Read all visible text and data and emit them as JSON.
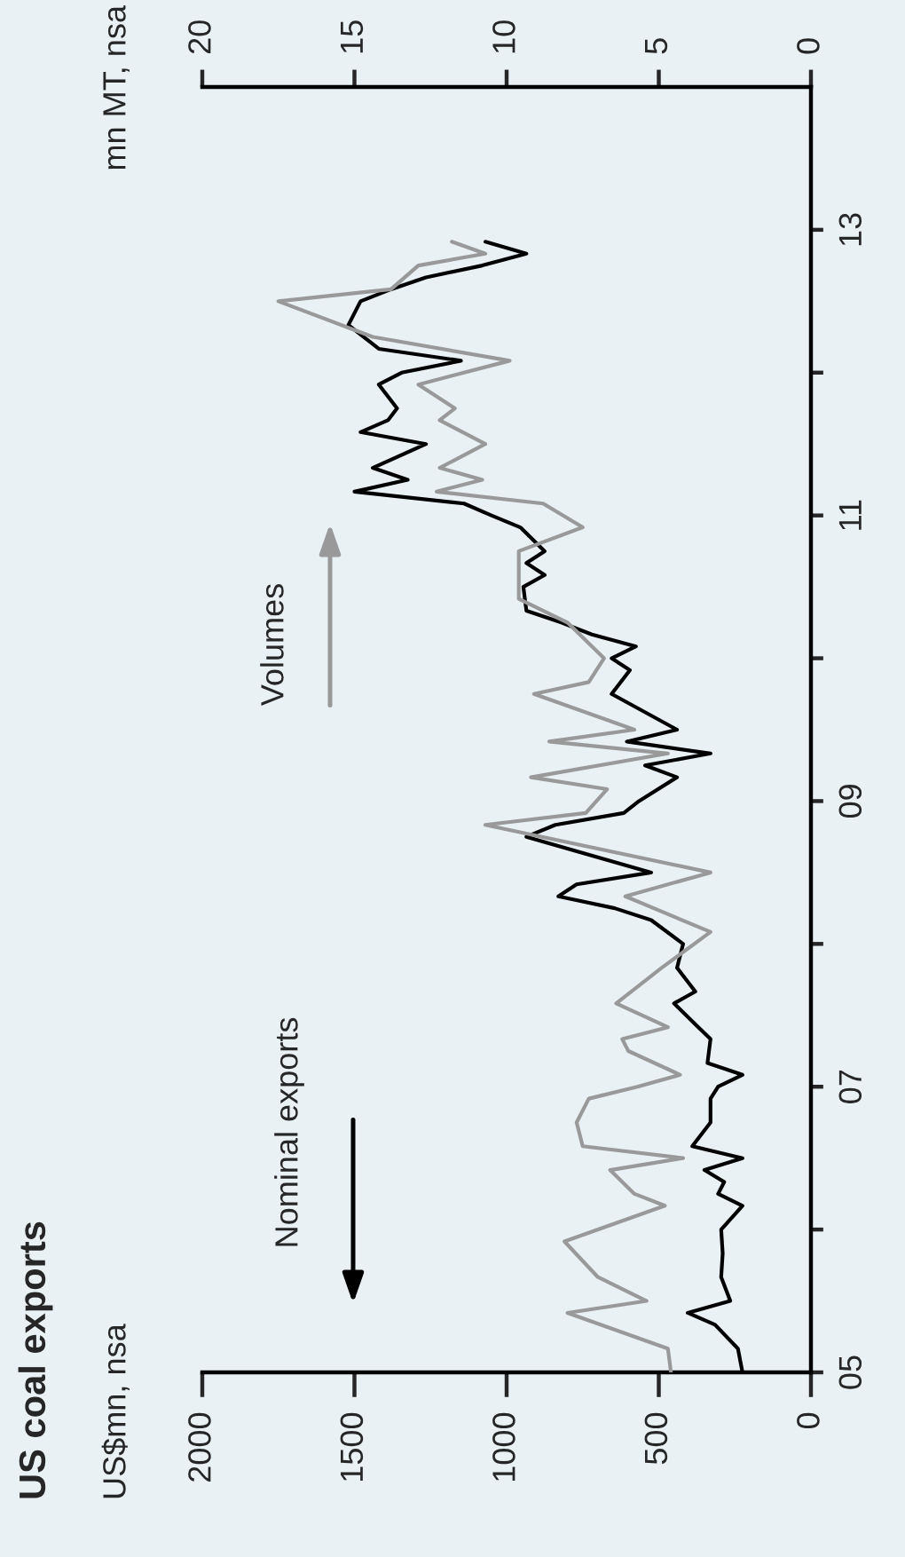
{
  "chart_data": {
    "type": "line",
    "orientation": "horizontal",
    "title": "US coal exports",
    "subtitle": "US$mn, nsa",
    "x2label": "mn MT, nsa",
    "annotations": [
      "Nominal exports",
      "Volumes"
    ],
    "ylim": [
      "2005-01",
      "2014-01"
    ],
    "yticks": [
      {
        "value": "2005-01",
        "label": "05"
      },
      {
        "value": "2006-01",
        "label": null
      },
      {
        "value": "2007-01",
        "label": "07"
      },
      {
        "value": "2008-01",
        "label": null
      },
      {
        "value": "2009-01",
        "label": "09"
      },
      {
        "value": "2010-01",
        "label": null
      },
      {
        "value": "2011-01",
        "label": "11"
      },
      {
        "value": "2012-01",
        "label": null
      },
      {
        "value": "2013-01",
        "label": "13"
      }
    ],
    "xlim": [
      2000,
      0
    ],
    "xticks": [
      0,
      500,
      1000,
      1500,
      2000
    ],
    "x2lim": [
      20,
      0
    ],
    "x2ticks": [
      0,
      5,
      10,
      15,
      20
    ],
    "grid": false,
    "legend": false,
    "series": [
      {
        "color": "#000000",
        "x": [
          "2005-01",
          "2005-03",
          "2005-05",
          "2005-06",
          "2005-07",
          "2005-09",
          "2005-11",
          "2006-01",
          "2006-03",
          "2006-04",
          "2006-05",
          "2006-06",
          "2006-07",
          "2006-08",
          "2006-10",
          "2006-12",
          "2007-01",
          "2007-02",
          "2007-03",
          "2007-05",
          "2007-06",
          "2007-08",
          "2007-09",
          "2007-11",
          "2008-01",
          "2008-03",
          "2008-04",
          "2008-05",
          "2008-06",
          "2008-07",
          "2008-10",
          "2008-11",
          "2008-12",
          "2009-01",
          "2009-03",
          "2009-04",
          "2009-05",
          "2009-06",
          "2009-07",
          "2009-10",
          "2009-12",
          "2010-01",
          "2010-02",
          "2010-03",
          "2010-04",
          "2010-05",
          "2010-07",
          "2010-08",
          "2010-09",
          "2010-10",
          "2010-12",
          "2011-01",
          "2011-02",
          "2011-03",
          "2011-04",
          "2011-05",
          "2011-07",
          "2011-08",
          "2011-09",
          "2011-10",
          "2011-12",
          "2012-01",
          "2012-02",
          "2012-03",
          "2012-05",
          "2012-07",
          "2012-08",
          "2012-09",
          "2012-10",
          "2012-11",
          "2012-12"
        ],
        "values": [
          225,
          240,
          315,
          405,
          265,
          295,
          290,
          295,
          225,
          305,
          285,
          350,
          225,
          390,
          330,
          330,
          305,
          225,
          340,
          330,
          370,
          450,
          380,
          440,
          420,
          525,
          645,
          830,
          770,
          525,
          935,
          840,
          615,
          565,
          440,
          545,
          330,
          605,
          440,
          655,
          595,
          655,
          575,
          720,
          820,
          935,
          945,
          875,
          935,
          875,
          955,
          1050,
          1140,
          1500,
          1325,
          1440,
          1265,
          1480,
          1390,
          1360,
          1420,
          1345,
          1150,
          1420,
          1520,
          1480,
          1380,
          1265,
          1080,
          935,
          1070
        ]
      },
      {
        "color": "#999999",
        "axis": "x2",
        "x": [
          "2005-01",
          "2005-03",
          "2005-06",
          "2005-07",
          "2005-09",
          "2005-12",
          "2006-03",
          "2006-04",
          "2006-06",
          "2006-07",
          "2006-08",
          "2006-10",
          "2006-12",
          "2007-01",
          "2007-02",
          "2007-04",
          "2007-05",
          "2007-06",
          "2007-08",
          "2007-11",
          "2008-02",
          "2008-05",
          "2008-07",
          "2008-11",
          "2008-12",
          "2009-02",
          "2009-03",
          "2009-05",
          "2009-06",
          "2009-07",
          "2009-10",
          "2009-11",
          "2010-01",
          "2010-04",
          "2010-06",
          "2010-08",
          "2010-10",
          "2010-12",
          "2011-02",
          "2011-03",
          "2011-04",
          "2011-05",
          "2011-07",
          "2011-09",
          "2011-10",
          "2011-12",
          "2012-02",
          "2012-04",
          "2012-07",
          "2012-08",
          "2012-10",
          "2012-11",
          "2012-12"
        ],
        "values": [
          4.6,
          4.7,
          8.0,
          5.4,
          7.0,
          8.1,
          4.8,
          5.8,
          6.6,
          4.2,
          7.5,
          7.7,
          7.3,
          5.7,
          4.3,
          6.0,
          6.2,
          4.7,
          6.4,
          4.9,
          3.3,
          6.1,
          3.3,
          10.7,
          7.4,
          6.7,
          9.2,
          4.7,
          8.6,
          5.8,
          9.1,
          7.3,
          6.8,
          8.0,
          9.6,
          9.6,
          9.6,
          7.5,
          8.8,
          12.3,
          10.8,
          12.2,
          10.7,
          12.2,
          11.7,
          12.9,
          9.9,
          14.4,
          17.5,
          13.8,
          12.9,
          10.7,
          11.8
        ]
      }
    ]
  }
}
